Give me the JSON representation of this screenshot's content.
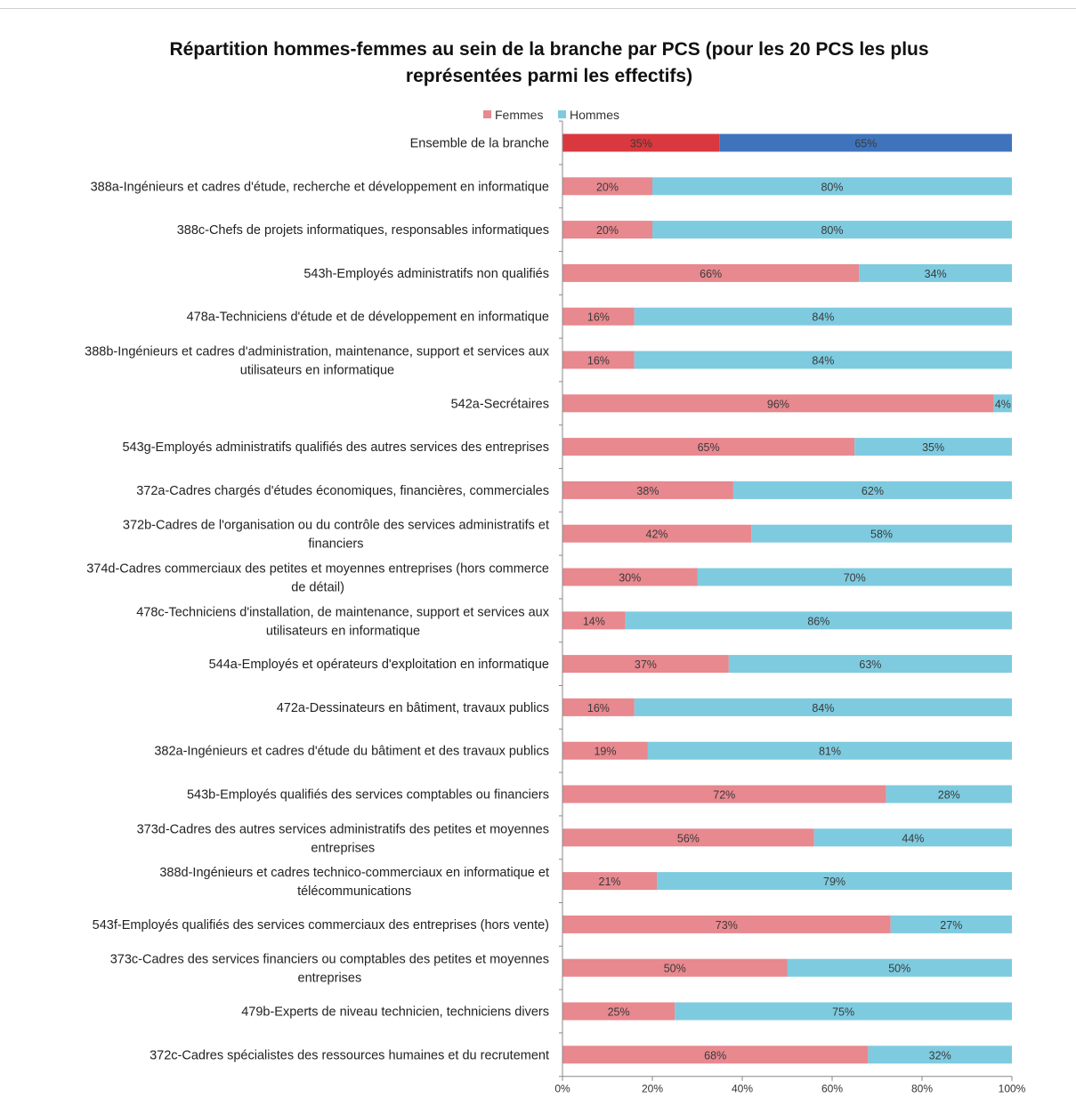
{
  "chart_data": {
    "type": "bar",
    "orientation": "horizontal",
    "stacked": true,
    "title": [
      "Répartition hommes-femmes au sein de la branche par PCS (pour les 20 PCS les plus",
      "représentées parmi les effectifs)"
    ],
    "legend": {
      "placement": "top",
      "entries": [
        "Femmes",
        "Hommes"
      ]
    },
    "categories": [
      [
        "Ensemble de la branche"
      ],
      [
        "388a-Ingénieurs et cadres d'étude, recherche et développement en informatique"
      ],
      [
        "388c-Chefs de projets informatiques, responsables informatiques"
      ],
      [
        "543h-Employés administratifs non qualifiés"
      ],
      [
        "478a-Techniciens d'étude et de développement en informatique"
      ],
      [
        "388b-Ingénieurs et cadres d'administration, maintenance, support et services aux",
        "utilisateurs en informatique"
      ],
      [
        "542a-Secrétaires"
      ],
      [
        "543g-Employés administratifs qualifiés des autres services des entreprises"
      ],
      [
        "372a-Cadres chargés d'études économiques, financières, commerciales"
      ],
      [
        "372b-Cadres de l'organisation ou du contrôle des services administratifs et",
        "financiers"
      ],
      [
        "374d-Cadres commerciaux des petites et moyennes entreprises (hors commerce",
        "de détail)"
      ],
      [
        "478c-Techniciens d'installation, de maintenance, support et services aux",
        "utilisateurs en informatique"
      ],
      [
        "544a-Employés et opérateurs d'exploitation en informatique"
      ],
      [
        "472a-Dessinateurs en bâtiment, travaux publics"
      ],
      [
        "382a-Ingénieurs et cadres d'étude du bâtiment et des travaux publics"
      ],
      [
        "543b-Employés qualifiés des services comptables ou financiers"
      ],
      [
        "373d-Cadres des autres services administratifs des petites et moyennes",
        "entreprises"
      ],
      [
        "388d-Ingénieurs et cadres technico-commerciaux en informatique et",
        "télécommunications"
      ],
      [
        "543f-Employés qualifiés des services commerciaux des entreprises (hors vente)"
      ],
      [
        "373c-Cadres des services financiers ou comptables des petites et moyennes",
        "entreprises"
      ],
      [
        "479b-Experts de niveau technicien, techniciens divers"
      ],
      [
        "372c-Cadres spécialistes des ressources humaines et du recrutement"
      ]
    ],
    "series": [
      {
        "name": "Femmes",
        "values": [
          35,
          20,
          20,
          66,
          16,
          16,
          96,
          65,
          38,
          42,
          30,
          14,
          37,
          16,
          19,
          72,
          56,
          21,
          73,
          50,
          25,
          68
        ]
      },
      {
        "name": "Hommes",
        "values": [
          65,
          80,
          80,
          34,
          84,
          84,
          4,
          35,
          62,
          58,
          70,
          86,
          63,
          84,
          81,
          28,
          44,
          79,
          27,
          50,
          75,
          32
        ]
      }
    ],
    "value_labels": {
      "Femmes": [
        "35%",
        "20%",
        "20%",
        "66%",
        "16%",
        "16%",
        "96%",
        "65%",
        "38%",
        "42%",
        "30%",
        "14%",
        "37%",
        "16%",
        "19%",
        "72%",
        "56%",
        "21%",
        "73%",
        "50%",
        "25%",
        "68%"
      ],
      "Hommes": [
        "65%",
        "80%",
        "80%",
        "34%",
        "84%",
        "84%",
        "4%",
        "35%",
        "62%",
        "58%",
        "70%",
        "86%",
        "63%",
        "84%",
        "81%",
        "28%",
        "44%",
        "79%",
        "27%",
        "50%",
        "75%",
        "32%"
      ]
    },
    "x_ticks": [
      "0%",
      "20%",
      "40%",
      "60%",
      "80%",
      "100%"
    ],
    "xlim": [
      0,
      100
    ],
    "grid": false,
    "colors": {
      "femmes": "#e8888f",
      "hommes": "#7ecbe0",
      "femmes_total": "#d9383e",
      "hommes_total": "#3f74bd"
    }
  }
}
